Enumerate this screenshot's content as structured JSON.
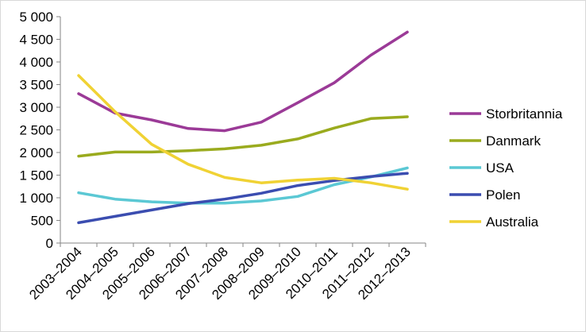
{
  "chart_data": {
    "type": "line",
    "categories": [
      "2003–2004",
      "2004–2005",
      "2005–2006",
      "2006–2007",
      "2007–2008",
      "2008–2009",
      "2009–2010",
      "2010–2011",
      "2011–2012",
      "2012–2013"
    ],
    "ylim": [
      0,
      5000
    ],
    "yticks": [
      0,
      500,
      1000,
      1500,
      2000,
      2500,
      3000,
      3500,
      4000,
      4500,
      5000
    ],
    "ytick_labels": [
      "0",
      "500",
      "1 000",
      "1 500",
      "2 000",
      "2 500",
      "3 000",
      "3 500",
      "4 000",
      "4 500",
      "5 000"
    ],
    "grid": false,
    "legend_position": "right",
    "series": [
      {
        "name": "Storbritannia",
        "color": "#9b3a97",
        "values": [
          3300,
          2870,
          2720,
          2530,
          2480,
          2670,
          3100,
          3540,
          4150,
          4660
        ]
      },
      {
        "name": "Danmark",
        "color": "#9aab1e",
        "values": [
          1920,
          2010,
          2010,
          2040,
          2080,
          2160,
          2300,
          2540,
          2750,
          2790
        ]
      },
      {
        "name": "USA",
        "color": "#5bc8d4",
        "values": [
          1110,
          970,
          910,
          880,
          880,
          930,
          1030,
          1290,
          1460,
          1660
        ]
      },
      {
        "name": "Polen",
        "color": "#3b4db0",
        "values": [
          450,
          590,
          730,
          870,
          970,
          1100,
          1270,
          1380,
          1470,
          1540
        ]
      },
      {
        "name": "Australia",
        "color": "#f0d234",
        "values": [
          3700,
          2900,
          2180,
          1740,
          1450,
          1330,
          1390,
          1430,
          1330,
          1190
        ]
      }
    ]
  }
}
